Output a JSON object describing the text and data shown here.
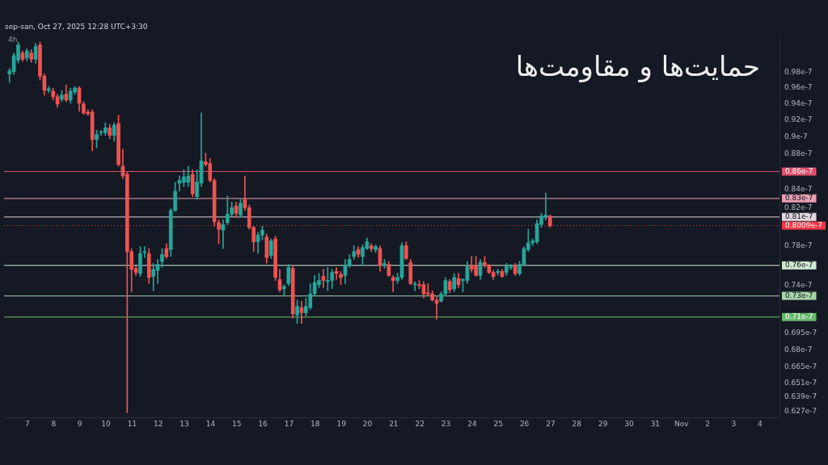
{
  "chart_data": {
    "type": "candlestick",
    "title": "حمایت‌ها و مقاومت‌ها",
    "subtitle": "4h",
    "annotations": [
      "sep-san, Oct 27, 2025 12:28 UTC+3:30"
    ],
    "x": [
      "2025-10-06T07:30",
      "2025-10-06T11:30",
      "2025-10-06T15:30",
      "2025-10-06T19:30",
      "2025-10-06T23:30",
      "2025-10-07T03:30",
      "2025-10-07T07:30",
      "2025-10-07T11:30",
      "2025-10-07T15:30",
      "2025-10-07T19:30",
      "2025-10-07T23:30",
      "2025-10-08T03:30",
      "2025-10-08T07:30",
      "2025-10-08T11:30",
      "2025-10-08T15:30",
      "2025-10-08T19:30",
      "2025-10-08T23:30",
      "2025-10-09T03:30",
      "2025-10-09T07:30",
      "2025-10-09T11:30",
      "2025-10-09T15:30",
      "2025-10-09T19:30",
      "2025-10-09T23:30",
      "2025-10-10T03:30",
      "2025-10-10T07:30",
      "2025-10-10T11:30",
      "2025-10-10T15:30",
      "2025-10-10T19:30",
      "2025-10-10T23:30",
      "2025-10-11T03:30",
      "2025-10-11T07:30",
      "2025-10-11T11:30",
      "2025-10-11T15:30",
      "2025-10-11T19:30",
      "2025-10-11T23:30",
      "2025-10-12T03:30",
      "2025-10-12T07:30",
      "2025-10-12T11:30",
      "2025-10-12T15:30",
      "2025-10-12T19:30",
      "2025-10-12T23:30",
      "2025-10-13T03:30",
      "2025-10-13T07:30",
      "2025-10-13T11:30",
      "2025-10-13T15:30",
      "2025-10-13T19:30",
      "2025-10-13T23:30",
      "2025-10-14T03:30",
      "2025-10-14T07:30",
      "2025-10-14T11:30",
      "2025-10-14T15:30",
      "2025-10-14T19:30",
      "2025-10-14T23:30",
      "2025-10-15T03:30",
      "2025-10-15T07:30",
      "2025-10-15T11:30",
      "2025-10-15T15:30",
      "2025-10-15T19:30",
      "2025-10-15T23:30",
      "2025-10-16T03:30",
      "2025-10-16T07:30",
      "2025-10-16T11:30",
      "2025-10-16T15:30",
      "2025-10-16T19:30",
      "2025-10-16T23:30",
      "2025-10-17T03:30",
      "2025-10-17T07:30",
      "2025-10-17T11:30",
      "2025-10-17T15:30",
      "2025-10-17T19:30",
      "2025-10-17T23:30",
      "2025-10-18T03:30",
      "2025-10-18T07:30",
      "2025-10-18T11:30",
      "2025-10-18T15:30",
      "2025-10-18T19:30",
      "2025-10-18T23:30",
      "2025-10-19T03:30",
      "2025-10-19T07:30",
      "2025-10-19T11:30",
      "2025-10-19T15:30",
      "2025-10-19T19:30",
      "2025-10-19T23:30",
      "2025-10-20T03:30",
      "2025-10-20T07:30",
      "2025-10-20T11:30",
      "2025-10-20T15:30",
      "2025-10-20T19:30",
      "2025-10-20T23:30",
      "2025-10-21T03:30",
      "2025-10-21T07:30",
      "2025-10-21T11:30",
      "2025-10-21T15:30",
      "2025-10-21T19:30",
      "2025-10-21T23:30",
      "2025-10-22T03:30",
      "2025-10-22T07:30",
      "2025-10-22T11:30",
      "2025-10-22T15:30",
      "2025-10-22T19:30",
      "2025-10-22T23:30",
      "2025-10-23T03:30",
      "2025-10-23T07:30",
      "2025-10-23T11:30",
      "2025-10-23T15:30",
      "2025-10-23T19:30",
      "2025-10-23T23:30",
      "2025-10-24T03:30",
      "2025-10-24T07:30",
      "2025-10-24T11:30",
      "2025-10-24T15:30",
      "2025-10-24T19:30",
      "2025-10-24T23:30",
      "2025-10-25T03:30",
      "2025-10-25T07:30",
      "2025-10-25T11:30",
      "2025-10-25T15:30",
      "2025-10-25T19:30",
      "2025-10-25T23:30",
      "2025-10-26T03:30",
      "2025-10-26T07:30",
      "2025-10-26T11:30",
      "2025-10-26T15:30",
      "2025-10-26T19:30",
      "2025-10-26T23:30"
    ],
    "ohlc": [
      [
        9.78e-08,
        9.85e-08,
        9.67e-08,
        9.82e-08
      ],
      [
        9.81e-08,
        1.005e-07,
        9.77e-08,
        1.002e-07
      ],
      [
        9.96e-08,
        1.02e-07,
        9.92e-08,
        1.016e-07
      ],
      [
        1.005e-07,
        1.008e-07,
        9.94e-08,
        9.97e-08
      ],
      [
        9.99e-08,
        1.011e-07,
        9.95e-08,
        1.008e-07
      ],
      [
        1.005e-07,
        1.01e-07,
        9.93e-08,
        9.97e-08
      ],
      [
        9.97e-08,
        1.018e-07,
        9.92e-08,
        1.014e-07
      ],
      [
        1.016e-07,
        1.02e-07,
        9.7e-08,
        9.75e-08
      ],
      [
        9.75e-08,
        9.78e-08,
        9.51e-08,
        9.57e-08
      ],
      [
        9.57e-08,
        9.62e-08,
        9.54e-08,
        9.59e-08
      ],
      [
        9.56e-08,
        9.6e-08,
        9.45e-08,
        9.49e-08
      ],
      [
        9.49e-08,
        9.52e-08,
        9.36e-08,
        9.4e-08
      ],
      [
        9.46e-08,
        9.57e-08,
        9.43e-08,
        9.51e-08
      ],
      [
        9.52e-08,
        9.64e-08,
        9.43e-08,
        9.45e-08
      ],
      [
        9.45e-08,
        9.6e-08,
        9.41e-08,
        9.56e-08
      ],
      [
        9.55e-08,
        9.62e-08,
        9.52e-08,
        9.6e-08
      ],
      [
        9.6e-08,
        9.62e-08,
        9.31e-08,
        9.41e-08
      ],
      [
        9.4e-08,
        9.43e-08,
        9.27e-08,
        9.29e-08
      ],
      [
        9.3e-08,
        9.33e-08,
        9.26e-08,
        9.28e-08
      ],
      [
        9.3e-08,
        9.33e-08,
        8.84e-08,
        8.97e-08
      ],
      [
        8.97e-08,
        9.08e-08,
        8.87e-08,
        9.03e-08
      ],
      [
        9.05e-08,
        9.08e-08,
        9.02e-08,
        9.05e-08
      ],
      [
        9.05e-08,
        9.17e-08,
        9.02e-08,
        9.11e-08
      ],
      [
        9.11e-08,
        9.15e-08,
        8.98e-08,
        9.02e-08
      ],
      [
        9.02e-08,
        9.17e-08,
        8.95e-08,
        9.14e-08
      ],
      [
        9.16e-08,
        9.26e-08,
        8.66e-08,
        8.68e-08
      ],
      [
        8.66e-08,
        8.86e-08,
        8.52e-08,
        8.55e-08
      ],
      [
        8.57e-08,
        8.59e-08,
        6.26e-08,
        7.74e-08
      ],
      [
        7.74e-08,
        7.77e-08,
        7.34e-08,
        7.56e-08
      ],
      [
        7.57e-08,
        7.6e-08,
        7.5e-08,
        7.53e-08
      ],
      [
        7.52e-08,
        7.79e-08,
        7.49e-08,
        7.72e-08
      ],
      [
        7.73e-08,
        7.79e-08,
        7.68e-08,
        7.73e-08
      ],
      [
        7.72e-08,
        7.77e-08,
        7.42e-08,
        7.48e-08
      ],
      [
        7.49e-08,
        7.62e-08,
        7.35e-08,
        7.56e-08
      ],
      [
        7.55e-08,
        7.66e-08,
        7.42e-08,
        7.61e-08
      ],
      [
        7.64e-08,
        7.77e-08,
        7.58e-08,
        7.71e-08
      ],
      [
        7.77e-08,
        7.82e-08,
        7.67e-08,
        7.69e-08
      ],
      [
        7.76e-08,
        8.19e-08,
        7.69e-08,
        8.17e-08
      ],
      [
        8.17e-08,
        8.48e-08,
        8.16e-08,
        8.38e-08
      ],
      [
        8.47e-08,
        8.55e-08,
        8.38e-08,
        8.5e-08
      ],
      [
        8.48e-08,
        8.62e-08,
        8.43e-08,
        8.54e-08
      ],
      [
        8.48e-08,
        8.66e-08,
        8.43e-08,
        8.55e-08
      ],
      [
        8.57e-08,
        8.62e-08,
        8.32e-08,
        8.35e-08
      ],
      [
        8.32e-08,
        8.62e-08,
        8.29e-08,
        8.48e-08
      ],
      [
        8.47e-08,
        9.29e-08,
        8.43e-08,
        8.72e-08
      ],
      [
        8.71e-08,
        8.81e-08,
        8.66e-08,
        8.68e-08
      ],
      [
        8.69e-08,
        8.75e-08,
        8.48e-08,
        8.5e-08
      ],
      [
        8.5e-08,
        8.52e-08,
        8e-08,
        8.05e-08
      ],
      [
        8.04e-08,
        8.07e-08,
        7.82e-08,
        7.97e-08
      ],
      [
        7.96e-08,
        8.07e-08,
        7.77e-08,
        8.02e-08
      ],
      [
        8.04e-08,
        8.33e-08,
        8.02e-08,
        8.13e-08
      ],
      [
        8.13e-08,
        8.26e-08,
        8.11e-08,
        8.2e-08
      ],
      [
        8.22e-08,
        8.26e-08,
        8.1e-08,
        8.14e-08
      ],
      [
        8.12e-08,
        8.29e-08,
        8.1e-08,
        8.25e-08
      ],
      [
        8.29e-08,
        8.55e-08,
        8.17e-08,
        8.2e-08
      ],
      [
        8.2e-08,
        8.23e-08,
        7.97e-08,
        7.99e-08
      ],
      [
        7.99e-08,
        8e-08,
        7.74e-08,
        7.84e-08
      ],
      [
        7.84e-08,
        7.94e-08,
        7.72e-08,
        7.91e-08
      ],
      [
        7.91e-08,
        8e-08,
        7.86e-08,
        7.96e-08
      ],
      [
        7.89e-08,
        7.92e-08,
        7.62e-08,
        7.68e-08
      ],
      [
        7.7e-08,
        7.87e-08,
        7.67e-08,
        7.85e-08
      ],
      [
        7.87e-08,
        7.9e-08,
        7.45e-08,
        7.48e-08
      ],
      [
        7.46e-08,
        7.56e-08,
        7.34e-08,
        7.36e-08
      ],
      [
        7.37e-08,
        7.41e-08,
        7.3e-08,
        7.39e-08
      ],
      [
        7.42e-08,
        7.61e-08,
        7.4e-08,
        7.58e-08
      ],
      [
        7.57e-08,
        7.6e-08,
        7.09e-08,
        7.13e-08
      ],
      [
        7.12e-08,
        7.26e-08,
        7.04e-08,
        7.2e-08
      ],
      [
        7.19e-08,
        7.25e-08,
        7.04e-08,
        7.14e-08
      ],
      [
        7.14e-08,
        7.28e-08,
        7.11e-08,
        7.2e-08
      ],
      [
        7.19e-08,
        7.42e-08,
        7.17e-08,
        7.32e-08
      ],
      [
        7.32e-08,
        7.5e-08,
        7.3e-08,
        7.43e-08
      ],
      [
        7.41e-08,
        7.52e-08,
        7.38e-08,
        7.45e-08
      ],
      [
        7.49e-08,
        7.56e-08,
        7.38e-08,
        7.45e-08
      ],
      [
        7.44e-08,
        7.58e-08,
        7.35e-08,
        7.45e-08
      ],
      [
        7.45e-08,
        7.56e-08,
        7.37e-08,
        7.53e-08
      ],
      [
        7.54e-08,
        7.58e-08,
        7.46e-08,
        7.52e-08
      ],
      [
        7.51e-08,
        7.54e-08,
        7.41e-08,
        7.48e-08
      ],
      [
        7.5e-08,
        7.66e-08,
        7.42e-08,
        7.6e-08
      ],
      [
        7.6e-08,
        7.71e-08,
        7.58e-08,
        7.66e-08
      ],
      [
        7.69e-08,
        7.8e-08,
        7.66e-08,
        7.74e-08
      ],
      [
        7.76e-08,
        7.79e-08,
        7.68e-08,
        7.71e-08
      ],
      [
        7.69e-08,
        7.81e-08,
        7.6e-08,
        7.78e-08
      ],
      [
        7.77e-08,
        7.88e-08,
        7.76e-08,
        7.84e-08
      ],
      [
        7.8e-08,
        7.82e-08,
        7.74e-08,
        7.77e-08
      ],
      [
        7.76e-08,
        7.81e-08,
        7.73e-08,
        7.79e-08
      ],
      [
        7.77e-08,
        7.8e-08,
        7.54e-08,
        7.6e-08
      ],
      [
        7.6e-08,
        7.66e-08,
        7.57e-08,
        7.62e-08
      ],
      [
        7.61e-08,
        7.64e-08,
        7.49e-08,
        7.5e-08
      ],
      [
        7.48e-08,
        7.5e-08,
        7.34e-08,
        7.45e-08
      ],
      [
        7.45e-08,
        7.52e-08,
        7.42e-08,
        7.48e-08
      ],
      [
        7.48e-08,
        7.83e-08,
        7.46e-08,
        7.8e-08
      ],
      [
        7.8e-08,
        7.84e-08,
        7.66e-08,
        7.67e-08
      ],
      [
        7.63e-08,
        7.66e-08,
        7.41e-08,
        7.42e-08
      ],
      [
        7.41e-08,
        7.44e-08,
        7.35e-08,
        7.41e-08
      ],
      [
        7.41e-08,
        7.45e-08,
        7.37e-08,
        7.4e-08
      ],
      [
        7.41e-08,
        7.44e-08,
        7.28e-08,
        7.32e-08
      ],
      [
        7.33e-08,
        7.42e-08,
        7.3e-08,
        7.32e-08
      ],
      [
        7.32e-08,
        7.35e-08,
        7.25e-08,
        7.26e-08
      ],
      [
        7.26e-08,
        7.29e-08,
        7.08e-08,
        7.23e-08
      ],
      [
        7.25e-08,
        7.34e-08,
        7.24e-08,
        7.32e-08
      ],
      [
        7.32e-08,
        7.48e-08,
        7.3e-08,
        7.45e-08
      ],
      [
        7.44e-08,
        7.46e-08,
        7.33e-08,
        7.36e-08
      ],
      [
        7.37e-08,
        7.52e-08,
        7.34e-08,
        7.48e-08
      ],
      [
        7.47e-08,
        7.52e-08,
        7.38e-08,
        7.41e-08
      ],
      [
        7.45e-08,
        7.47e-08,
        7.34e-08,
        7.46e-08
      ],
      [
        7.45e-08,
        7.64e-08,
        7.42e-08,
        7.59e-08
      ],
      [
        7.6e-08,
        7.69e-08,
        7.53e-08,
        7.56e-08
      ],
      [
        7.6e-08,
        7.69e-08,
        7.49e-08,
        7.5e-08
      ],
      [
        7.5e-08,
        7.66e-08,
        7.46e-08,
        7.63e-08
      ],
      [
        7.63e-08,
        7.69e-08,
        7.58e-08,
        7.6e-08
      ],
      [
        7.6e-08,
        7.61e-08,
        7.52e-08,
        7.53e-08
      ],
      [
        7.53e-08,
        7.55e-08,
        7.46e-08,
        7.49e-08
      ],
      [
        7.53e-08,
        7.56e-08,
        7.5e-08,
        7.54e-08
      ],
      [
        7.54e-08,
        7.56e-08,
        7.48e-08,
        7.49e-08
      ],
      [
        7.53e-08,
        7.62e-08,
        7.5e-08,
        7.59e-08
      ],
      [
        7.58e-08,
        7.61e-08,
        7.56e-08,
        7.59e-08
      ],
      [
        7.6e-08,
        7.62e-08,
        7.5e-08,
        7.52e-08
      ],
      [
        7.52e-08,
        7.64e-08,
        7.5e-08,
        7.61e-08
      ],
      [
        7.61e-08,
        7.79e-08,
        7.6e-08,
        7.77e-08
      ],
      [
        7.76e-08,
        7.97e-08,
        7.74e-08,
        7.83e-08
      ],
      [
        7.83e-08,
        7.87e-08,
        7.8e-08,
        7.85e-08
      ],
      [
        7.84e-08,
        8.07e-08,
        7.82e-08,
        8.03e-08
      ],
      [
        8.02e-08,
        8.14e-08,
        7.99e-08,
        8.11e-08
      ],
      [
        8.1e-08,
        8.36e-08,
        8.07e-08,
        8.12e-08
      ],
      [
        8.11e-08,
        8.12e-08,
        7.99e-08,
        8.01e-08
      ]
    ],
    "colors": [
      "#26a69a",
      "#26a69a",
      "#26a69a",
      "#ef5350",
      "#26a69a",
      "#ef5350",
      "#26a69a",
      "#ef5350",
      "#ef5350",
      "#26a69a",
      "#ef5350",
      "#ef5350",
      "#26a69a",
      "#ef5350",
      "#26a69a",
      "#26a69a",
      "#ef5350",
      "#ef5350",
      "#ef5350",
      "#ef5350",
      "#26a69a",
      "#26a69a",
      "#26a69a",
      "#ef5350",
      "#26a69a",
      "#ef5350",
      "#ef5350",
      "#ef5350",
      "#ef5350",
      "#ef5350",
      "#26a69a",
      "#26a69a",
      "#ef5350",
      "#26a69a",
      "#26a69a",
      "#26a69a",
      "#ef5350",
      "#26a69a",
      "#26a69a",
      "#26a69a",
      "#26a69a",
      "#26a69a",
      "#ef5350",
      "#26a69a",
      "#26a69a",
      "#ef5350",
      "#ef5350",
      "#ef5350",
      "#ef5350",
      "#26a69a",
      "#26a69a",
      "#26a69a",
      "#ef5350",
      "#26a69a",
      "#ef5350",
      "#ef5350",
      "#ef5350",
      "#26a69a",
      "#26a69a",
      "#ef5350",
      "#26a69a",
      "#ef5350",
      "#ef5350",
      "#26a69a",
      "#26a69a",
      "#ef5350",
      "#26a69a",
      "#ef5350",
      "#26a69a",
      "#26a69a",
      "#26a69a",
      "#26a69a",
      "#ef5350",
      "#26a69a",
      "#26a69a",
      "#ef5350",
      "#ef5350",
      "#26a69a",
      "#26a69a",
      "#26a69a",
      "#ef5350",
      "#26a69a",
      "#26a69a",
      "#ef5350",
      "#26a69a",
      "#ef5350",
      "#26a69a",
      "#ef5350",
      "#ef5350",
      "#26a69a",
      "#26a69a",
      "#ef5350",
      "#ef5350",
      "#26a69a",
      "#ef5350",
      "#ef5350",
      "#ef5350",
      "#ef5350",
      "#ef5350",
      "#26a69a",
      "#26a69a",
      "#ef5350",
      "#26a69a",
      "#ef5350",
      "#26a69a",
      "#26a69a",
      "#ef5350",
      "#ef5350",
      "#26a69a",
      "#ef5350",
      "#ef5350",
      "#ef5350",
      "#26a69a",
      "#ef5350",
      "#26a69a",
      "#26a69a",
      "#ef5350",
      "#26a69a",
      "#26a69a",
      "#26a69a",
      "#26a69a",
      "#26a69a",
      "#26a69a",
      "#26a69a",
      "#ef5350"
    ],
    "xlim": [
      "2025-10-06T02:30",
      "2025-11-04T18:00"
    ],
    "xticks": [
      {
        "value": "2025-10-07",
        "label": "7"
      },
      {
        "value": "2025-10-08",
        "label": "8"
      },
      {
        "value": "2025-10-09",
        "label": "9"
      },
      {
        "value": "2025-10-10",
        "label": "10"
      },
      {
        "value": "2025-10-11",
        "label": "11"
      },
      {
        "value": "2025-10-12",
        "label": "12"
      },
      {
        "value": "2025-10-13",
        "label": "13"
      },
      {
        "value": "2025-10-14",
        "label": "14"
      },
      {
        "value": "2025-10-15",
        "label": "15"
      },
      {
        "value": "2025-10-16",
        "label": "16"
      },
      {
        "value": "2025-10-17",
        "label": "17"
      },
      {
        "value": "2025-10-18",
        "label": "18"
      },
      {
        "value": "2025-10-19",
        "label": "19"
      },
      {
        "value": "2025-10-20",
        "label": "20"
      },
      {
        "value": "2025-10-21",
        "label": "21"
      },
      {
        "value": "2025-10-22",
        "label": "22"
      },
      {
        "value": "2025-10-23",
        "label": "23"
      },
      {
        "value": "2025-10-24",
        "label": "24"
      },
      {
        "value": "2025-10-25",
        "label": "25"
      },
      {
        "value": "2025-10-26",
        "label": "26"
      },
      {
        "value": "2025-10-27",
        "label": "27"
      },
      {
        "value": "2025-10-28",
        "label": "28"
      },
      {
        "value": "2025-10-29",
        "label": "29"
      },
      {
        "value": "2025-10-30",
        "label": "30"
      },
      {
        "value": "2025-10-31",
        "label": "31"
      },
      {
        "value": "2025-11-01",
        "label": "Nov"
      },
      {
        "value": "2025-11-02",
        "label": "2"
      },
      {
        "value": "2025-11-03",
        "label": "3"
      },
      {
        "value": "2025-11-04",
        "label": "4"
      }
    ],
    "ylim": [
      6.22e-08,
      1.025e-07
    ],
    "yticks": [
      {
        "value": 9.8e-08,
        "label": "0.98e-7"
      },
      {
        "value": 9.6e-08,
        "label": "0.96e-7"
      },
      {
        "value": 9.4e-08,
        "label": "0.94e-7"
      },
      {
        "value": 9.2e-08,
        "label": "0.92e-7"
      },
      {
        "value": 9e-08,
        "label": "0.9e-7"
      },
      {
        "value": 8.8e-08,
        "label": "0.88e-7"
      },
      {
        "value": 8.4e-08,
        "label": "0.84e-7"
      },
      {
        "value": 8.2e-08,
        "label": "0.82e-7"
      },
      {
        "value": 7.8e-08,
        "label": "0.78e-7"
      },
      {
        "value": 7.4e-08,
        "label": "0.74e-7"
      },
      {
        "value": 6.95e-08,
        "label": "0.695e-7"
      },
      {
        "value": 6.8e-08,
        "label": "0.68e-7"
      },
      {
        "value": 6.65e-08,
        "label": "0.665e-7"
      },
      {
        "value": 6.51e-08,
        "label": "0.651e-7"
      },
      {
        "value": 6.39e-08,
        "label": "0.639e-7"
      },
      {
        "value": 6.27e-08,
        "label": "0.627e-7"
      }
    ],
    "log": "y",
    "ref_lines": [
      {
        "axis": "y",
        "value": 8.6e-08,
        "label": "0.86e-7",
        "color": "#e0506a"
      },
      {
        "axis": "y",
        "value": 8.3e-08,
        "label": "0.83e-7",
        "color": "#e8a0b0"
      },
      {
        "axis": "y",
        "value": 8.1e-08,
        "label": "0.81e-7",
        "color": "#e0d6dc"
      },
      {
        "axis": "y",
        "value": 8.009e-08,
        "label": "0.8009e-7",
        "color": "#f23645",
        "line_style": "dotted"
      },
      {
        "axis": "y",
        "value": 7.6e-08,
        "label": "0.76e-7",
        "color": "#cfe8d0"
      },
      {
        "axis": "y",
        "value": 7.3e-08,
        "label": "0.73e-7",
        "color": "#a5d6a7"
      },
      {
        "axis": "y",
        "value": 7.1e-08,
        "label": "0.71e-7",
        "color": "#66bb6a"
      }
    ]
  }
}
